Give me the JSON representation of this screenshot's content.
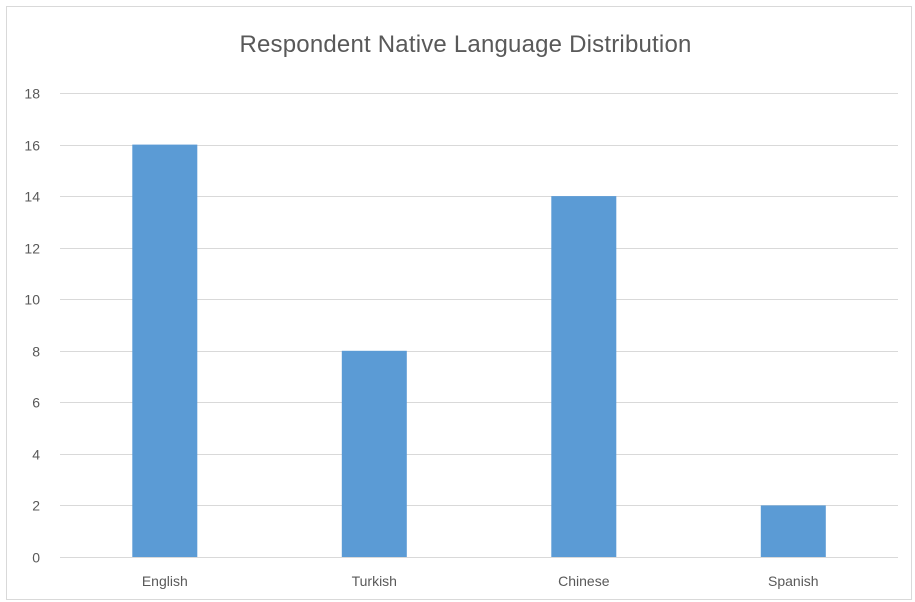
{
  "chart_data": {
    "type": "bar",
    "title": "Respondent  Native Language Distribution",
    "categories": [
      "English",
      "Turkish",
      "Chinese",
      "Spanish"
    ],
    "values": [
      16,
      8,
      14,
      2
    ],
    "xlabel": "",
    "ylabel": "",
    "ylim": [
      0,
      18
    ],
    "yticks": [
      0,
      2,
      4,
      6,
      8,
      10,
      12,
      14,
      16,
      18
    ],
    "grid": true,
    "legend": "none",
    "bar_color": "#5b9bd5"
  }
}
